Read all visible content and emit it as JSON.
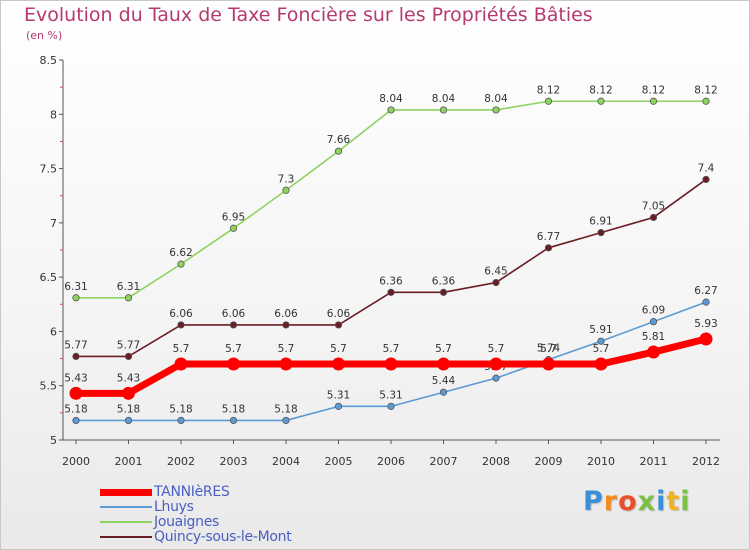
{
  "title": "Evolution du Taux de Taxe Foncière sur les Propriétés Bâties",
  "subtitle": "(en %)",
  "chart_data": {
    "type": "line",
    "x": [
      "2000",
      "2001",
      "2002",
      "2003",
      "2004",
      "2005",
      "2006",
      "2007",
      "2008",
      "2009",
      "2010",
      "2011",
      "2012"
    ],
    "ylim": [
      5,
      8.5
    ],
    "yticks": [
      "5",
      "5.5",
      "6",
      "6.5",
      "7",
      "7.5",
      "8",
      "8.5"
    ],
    "grid": false,
    "legend_placement": "bottom-left",
    "series": [
      {
        "name": "TANNIèRES",
        "color": "#ff0000",
        "values": [
          5.43,
          5.43,
          5.7,
          5.7,
          5.7,
          5.7,
          5.7,
          5.7,
          5.7,
          5.7,
          5.7,
          5.81,
          5.93
        ],
        "labels": [
          "5.43",
          "5.43",
          "5.7",
          "5.7",
          "5.7",
          "5.7",
          "5.7",
          "5.7",
          "5.7",
          "5.7",
          "5.7",
          "5.81",
          "5.93"
        ]
      },
      {
        "name": "Lhuys",
        "color": "#5b9bd5",
        "values": [
          5.18,
          5.18,
          5.18,
          5.18,
          5.18,
          5.31,
          5.31,
          5.44,
          5.57,
          5.74,
          5.91,
          6.09,
          6.27
        ],
        "labels": [
          "5.18",
          "5.18",
          "5.18",
          "5.18",
          "5.18",
          "5.31",
          "5.31",
          "5.44",
          "5.57",
          "5.74",
          "5.91",
          "6.09",
          "6.27"
        ]
      },
      {
        "name": "Jouaignes",
        "color": "#8dd35f",
        "values": [
          6.31,
          6.31,
          6.62,
          6.95,
          7.3,
          7.66,
          8.04,
          8.04,
          8.04,
          8.12,
          8.12,
          8.12,
          8.12
        ],
        "labels": [
          "6.31",
          "6.31",
          "6.62",
          "6.95",
          "7.3",
          "7.66",
          "8.04",
          "8.04",
          "8.04",
          "8.12",
          "8.12",
          "8.12",
          "8.12"
        ]
      },
      {
        "name": "Quincy-sous-le-Mont",
        "color": "#6b1d25",
        "values": [
          5.77,
          5.77,
          6.06,
          6.06,
          6.06,
          6.06,
          6.36,
          6.36,
          6.45,
          6.77,
          6.91,
          7.05,
          7.4
        ],
        "labels": [
          "5.77",
          "5.77",
          "6.06",
          "6.06",
          "6.06",
          "6.06",
          "6.36",
          "6.36",
          "6.45",
          "6.77",
          "6.91",
          "7.05",
          "7.4"
        ]
      }
    ]
  },
  "logo": {
    "letters": [
      "P",
      "r",
      "o",
      "x",
      "i",
      "t",
      "i"
    ],
    "colors": [
      "#3a8fd6",
      "#f28c1e",
      "#e84f2a",
      "#7ac143",
      "#3a8fd6",
      "#f2b21e",
      "#7ac143"
    ]
  }
}
